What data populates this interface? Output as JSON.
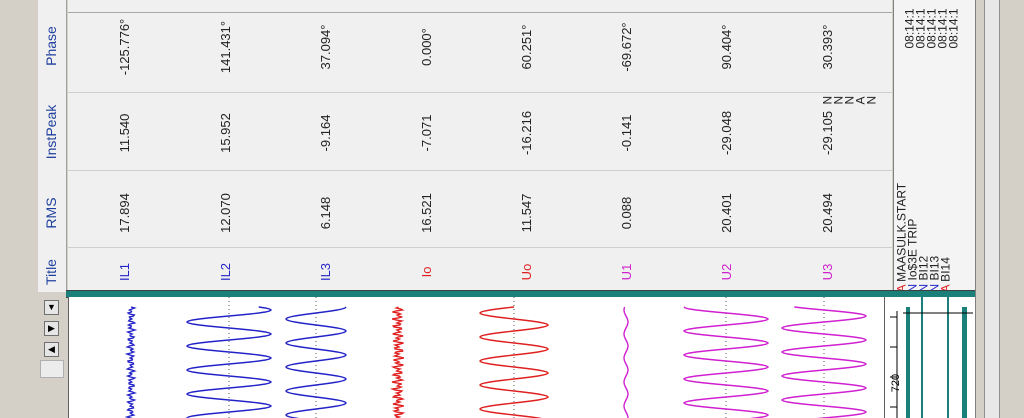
{
  "columns": {
    "phase": "Phase",
    "instpeak": "InstPeak",
    "rms": "RMS",
    "title": "Title"
  },
  "channels": [
    {
      "title": "IL1",
      "rms": "17.894",
      "instpeak": "11.540",
      "phase": "-125.776°",
      "color": "#2323c8"
    },
    {
      "title": "IL2",
      "rms": "12.070",
      "instpeak": "15.952",
      "phase": "141.431°",
      "color": "#2323c8"
    },
    {
      "title": "IL3",
      "rms": "6.148",
      "instpeak": "-9.164",
      "phase": "37.094°",
      "color": "#2323c8"
    },
    {
      "title": "Io",
      "rms": "16.521",
      "instpeak": "-7.071",
      "phase": "0.000°",
      "color": "#e02020"
    },
    {
      "title": "Uo",
      "rms": "11.547",
      "instpeak": "-16.216",
      "phase": "60.251°",
      "color": "#e02020"
    },
    {
      "title": "U1",
      "rms": "0.088",
      "instpeak": "-0.141",
      "phase": "-69.672°",
      "color": "#d020d0"
    },
    {
      "title": "U2",
      "rms": "20.401",
      "instpeak": "-29.048",
      "phase": "90.404°",
      "color": "#d020d0"
    },
    {
      "title": "U3",
      "rms": "20.494",
      "instpeak": "-29.105",
      "phase": "30.393°",
      "color": "#d020d0"
    }
  ],
  "events": [
    {
      "flag": "A",
      "name": "MAASULK.START",
      "state": "N",
      "time": "08:14:1",
      "flag_color": "#e02020"
    },
    {
      "flag": "N",
      "name": "Io$3E TRIP",
      "state": "N",
      "time": "08:14:1",
      "flag_color": "#2323c8"
    },
    {
      "flag": "N",
      "name": "BI12",
      "state": "N",
      "time": "08:14:1",
      "flag_color": "#2323c8"
    },
    {
      "flag": "N",
      "name": "BI13",
      "state": "A",
      "time": "08:14:1",
      "flag_color": "#2323c8"
    },
    {
      "flag": "A",
      "name": "BI14",
      "state": "N",
      "time": "08:14:1",
      "flag_color": "#e02020"
    }
  ],
  "ruler_label": "720",
  "icons": {
    "scroll_up": "up-arrow-icon",
    "scroll_left": "left-arrow-icon",
    "scroll_right": "right-arrow-icon",
    "scroll_down": "down-arrow-icon"
  }
}
